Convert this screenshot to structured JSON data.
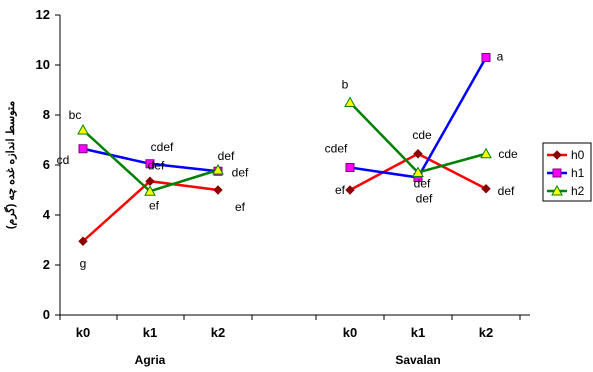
{
  "chart_data": {
    "type": "line",
    "ylabel": "متوسط اندازه غده چه (گرم)",
    "ylim": [
      0,
      12
    ],
    "yticks": [
      "0",
      "2",
      "4",
      "6",
      "8",
      "10",
      "12"
    ],
    "groups": [
      {
        "name": "Agria",
        "categories": [
          "k0",
          "k1",
          "k2"
        ]
      },
      {
        "name": "Savalan",
        "categories": [
          "k0",
          "k1",
          "k2"
        ]
      }
    ],
    "legend_position": "right",
    "series": [
      {
        "name": "h0",
        "color": "#ff0000",
        "marker": "diamond",
        "marker_color": "#8b0000",
        "groups": [
          {
            "values": [
              2.95,
              5.35,
              5.0
            ],
            "labels": [
              "g",
              "def",
              "ef"
            ]
          },
          {
            "values": [
              5.0,
              6.45,
              5.05
            ],
            "labels": [
              "ef",
              "cde",
              "def"
            ]
          }
        ]
      },
      {
        "name": "h1",
        "color": "#0000ff",
        "marker": "square",
        "marker_color": "#ff00ff",
        "groups": [
          {
            "values": [
              6.65,
              6.05,
              5.75
            ],
            "labels": [
              "cd",
              "cdef",
              "def"
            ]
          },
          {
            "values": [
              5.9,
              5.5,
              10.3
            ],
            "labels": [
              "cdef",
              "def",
              "a"
            ]
          }
        ]
      },
      {
        "name": "h2",
        "color": "#008000",
        "marker": "triangle",
        "marker_color": "#ffff00",
        "groups": [
          {
            "values": [
              7.4,
              4.95,
              5.8
            ],
            "labels": [
              "bc",
              "ef",
              "def"
            ]
          },
          {
            "values": [
              8.5,
              5.7,
              6.45
            ],
            "labels": [
              "b",
              "def",
              "cde"
            ]
          }
        ]
      }
    ]
  }
}
